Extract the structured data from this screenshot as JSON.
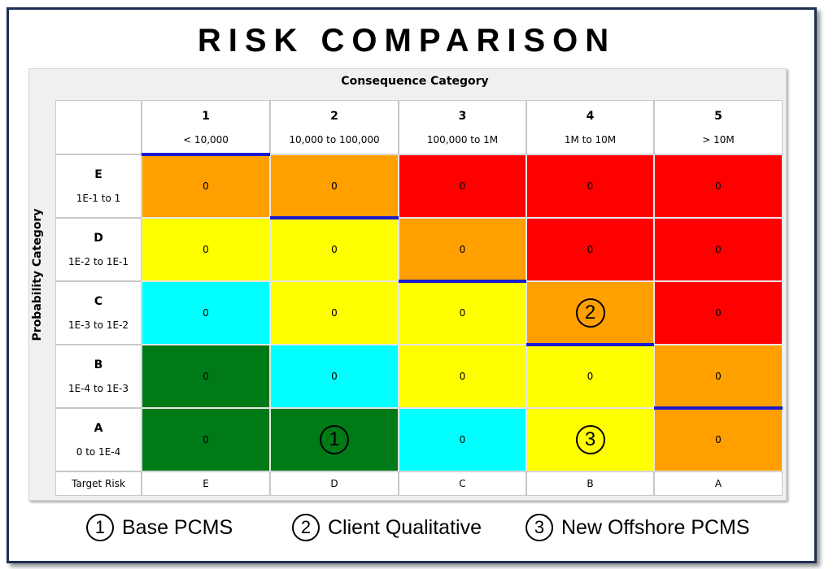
{
  "title": "RISK COMPARISON",
  "colors": {
    "green": "#007a17",
    "cyan": "#00ffff",
    "yellow": "#ffff00",
    "orange": "#ff9f00",
    "red": "#ff0000",
    "target_bar": "#1a1acd"
  },
  "chart_data": {
    "type": "heatmap",
    "title": "RISK COMPARISON",
    "xlabel": "Consequence Category",
    "ylabel": "Probability Category",
    "columns": [
      {
        "num": "1",
        "range": "< 10,000"
      },
      {
        "num": "2",
        "range": "10,000 to 100,000"
      },
      {
        "num": "3",
        "range": "100,000 to 1M"
      },
      {
        "num": "4",
        "range": "1M to 10M"
      },
      {
        "num": "5",
        "range": "> 10M"
      }
    ],
    "rows": [
      {
        "letter": "E",
        "range": "1E-1 to 1",
        "colors": [
          "orange",
          "orange",
          "red",
          "red",
          "red"
        ],
        "values": [
          "0",
          "0",
          "0",
          "0",
          "0"
        ]
      },
      {
        "letter": "D",
        "range": "1E-2 to 1E-1",
        "colors": [
          "yellow",
          "yellow",
          "orange",
          "red",
          "red"
        ],
        "values": [
          "0",
          "0",
          "0",
          "0",
          "0"
        ]
      },
      {
        "letter": "C",
        "range": "1E-3 to 1E-2",
        "colors": [
          "cyan",
          "yellow",
          "yellow",
          "orange",
          "red"
        ],
        "values": [
          "0",
          "0",
          "0",
          "",
          "0"
        ]
      },
      {
        "letter": "B",
        "range": "1E-4 to 1E-3",
        "colors": [
          "green",
          "cyan",
          "yellow",
          "yellow",
          "orange"
        ],
        "values": [
          "0",
          "0",
          "0",
          "0",
          "0"
        ]
      },
      {
        "letter": "A",
        "range": "0 to 1E-4",
        "colors": [
          "green",
          "green",
          "cyan",
          "yellow",
          "orange"
        ],
        "values": [
          "0",
          "",
          "0",
          "",
          "0"
        ]
      }
    ],
    "target_risk_label": "Target Risk",
    "target_risk": [
      "E",
      "D",
      "C",
      "B",
      "A"
    ],
    "markers": [
      {
        "id": "1",
        "row": "A",
        "col": "2"
      },
      {
        "id": "2",
        "row": "C",
        "col": "4"
      },
      {
        "id": "3",
        "row": "A",
        "col": "4"
      }
    ]
  },
  "legend": [
    {
      "id": "1",
      "label": "Base PCMS"
    },
    {
      "id": "2",
      "label": "Client Qualitative"
    },
    {
      "id": "3",
      "label": "New Offshore PCMS"
    }
  ]
}
